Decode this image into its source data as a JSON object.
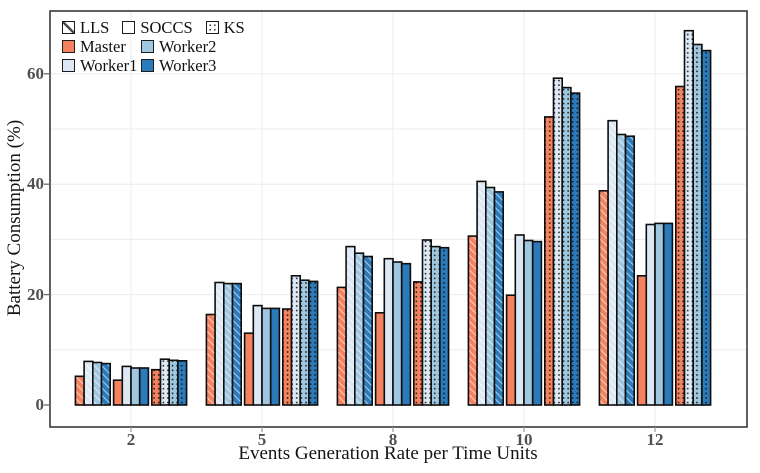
{
  "figure": {
    "y_axis_title": "Battery Consumption (%)",
    "x_axis_title": "Events Generation Rate per Time Units"
  },
  "legend": {
    "pattern_entries": [
      {
        "label": "LLS",
        "pattern": "diagonal-hatch"
      },
      {
        "label": "SOCCS",
        "pattern": "solid"
      },
      {
        "label": "KS",
        "pattern": "dots"
      }
    ],
    "color_entries": [
      {
        "label": "Master",
        "color": "#F5825E"
      },
      {
        "label": "Worker2",
        "color": "#9FC8E0"
      },
      {
        "label": "Worker1",
        "color": "#DCE9F5"
      },
      {
        "label": "Worker3",
        "color": "#2B7BBA"
      }
    ]
  },
  "palette": {
    "Master": "#F5825E",
    "Worker1": "#DCE9F5",
    "Worker2": "#9FC8E0",
    "Worker3": "#2B7BBA",
    "bar_border": "#0D0D0D",
    "frame": "#3A3A3A",
    "gridline": "#ECECEC",
    "tick_label": "#4F4F4F"
  },
  "chart_data": {
    "type": "bar",
    "title": "",
    "xlabel": "Events Generation Rate per Time Units",
    "ylabel": "Battery Consumption (%)",
    "categories": [
      "2",
      "5",
      "8",
      "10",
      "12"
    ],
    "yticks": [
      0,
      20,
      40,
      60
    ],
    "ylim": [
      0,
      71.5
    ],
    "grid": {
      "horizontal_every": 10,
      "vertical_at_group_centers": true
    },
    "legend_position": "upper-left-inside",
    "group_structure": "each category has 3 pattern sub-groups (LLS, SOCCS, KS), each with 4 colored bars (Master, Worker1, Worker2, Worker3)",
    "series": [
      {
        "name": "LLS",
        "pattern": "diagonal-hatch",
        "bars": [
          {
            "role": "Master",
            "values": [
              5.2,
              16.4,
              21.3,
              30.6,
              38.8
            ]
          },
          {
            "role": "Worker1",
            "values": [
              7.9,
              22.2,
              28.7,
              40.5,
              51.5
            ]
          },
          {
            "role": "Worker2",
            "values": [
              7.7,
              22.0,
              27.5,
              39.4,
              49.0
            ]
          },
          {
            "role": "Worker3",
            "values": [
              7.5,
              22.0,
              26.9,
              38.6,
              48.7
            ]
          }
        ]
      },
      {
        "name": "SOCCS",
        "pattern": "solid",
        "bars": [
          {
            "role": "Master",
            "values": [
              4.5,
              13.0,
              16.7,
              19.9,
              23.4
            ]
          },
          {
            "role": "Worker1",
            "values": [
              7.0,
              18.0,
              26.5,
              30.8,
              32.7
            ]
          },
          {
            "role": "Worker2",
            "values": [
              6.7,
              17.5,
              25.9,
              29.8,
              32.9
            ]
          },
          {
            "role": "Worker3",
            "values": [
              6.7,
              17.5,
              25.6,
              29.6,
              32.9
            ]
          }
        ]
      },
      {
        "name": "KS",
        "pattern": "dots",
        "bars": [
          {
            "role": "Master",
            "values": [
              6.4,
              17.4,
              22.3,
              52.2,
              57.7
            ]
          },
          {
            "role": "Worker1",
            "values": [
              8.3,
              23.4,
              29.9,
              59.2,
              67.8
            ]
          },
          {
            "role": "Worker2",
            "values": [
              8.1,
              22.6,
              28.7,
              57.5,
              65.3
            ]
          },
          {
            "role": "Worker3",
            "values": [
              8.0,
              22.4,
              28.5,
              56.5,
              64.2
            ]
          }
        ]
      }
    ]
  }
}
